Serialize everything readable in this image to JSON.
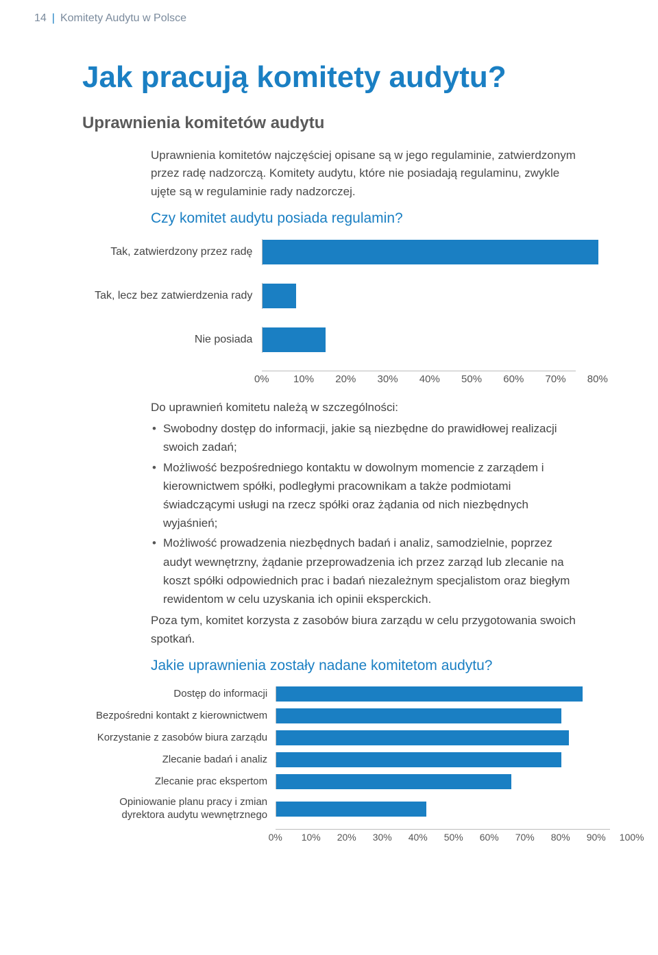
{
  "header": {
    "page_number": "14",
    "doc_title": "Komitety Audytu w Polsce"
  },
  "title": "Jak pracują komitety audytu?",
  "subtitle": "Uprawnienia komitetów audytu",
  "intro_para": "Uprawnienia komitetów najczęściej opisane są w jego regulaminie, zatwierdzonym przez radę nadzorczą. Komitety audytu, które nie posiadają regulaminu, zwykle ujęte są w regulaminie rady nadzorczej.",
  "question1": "Czy komitet audytu posiada regulamin?",
  "chart1": {
    "type": "bar-horizontal",
    "bar_color": "#1a7fc3",
    "axis_color": "#bbbbbb",
    "label_fontsize": 16,
    "tick_fontsize": 15,
    "xmin": 0,
    "xmax": 80,
    "xtick_step": 10,
    "categories": [
      {
        "label": "Tak, zatwierdzony przez radę",
        "value": 80
      },
      {
        "label": "Tak, lecz bez zatwierdzenia rady",
        "value": 8
      },
      {
        "label": "Nie posiada",
        "value": 15
      }
    ],
    "ticks": [
      "0%",
      "10%",
      "20%",
      "30%",
      "40%",
      "50%",
      "60%",
      "70%",
      "80%"
    ]
  },
  "bullets": {
    "intro": "Do uprawnień komitetu należą w szczególności:",
    "items": [
      "Swobodny dostęp do informacji, jakie są niezbędne do prawidłowej realizacji swoich zadań;",
      "Możliwość bezpośredniego kontaktu w dowolnym momencie z zarządem i kierownictwem spółki, podległymi pracownikam a także podmiotami świadczącymi usługi na rzecz spółki oraz żądania od nich niezbędnych wyjaśnień;",
      "Możliwość prowadzenia niezbędnych badań i analiz, samodzielnie, poprzez audyt wewnętrzny, żądanie przeprowadzenia ich przez zarząd lub zlecanie na koszt spółki odpowiednich prac i badań niezależnym specjalistom oraz biegłym rewidentom w celu uzyskania ich opinii eksperckich."
    ],
    "outro": "Poza tym, komitet korzysta z zasobów biura zarządu w celu przygotowania swoich spotkań."
  },
  "question2": "Jakie uprawnienia zostały nadane komitetom audytu?",
  "chart2": {
    "type": "bar-horizontal",
    "bar_color": "#1a7fc3",
    "axis_color": "#bbbbbb",
    "label_fontsize": 15,
    "tick_fontsize": 14,
    "xmin": 0,
    "xmax": 100,
    "xtick_step": 10,
    "categories": [
      {
        "label": "Dostęp do informacji",
        "value": 86
      },
      {
        "label": "Bezpośredni kontakt z kierownictwem",
        "value": 80
      },
      {
        "label": "Korzystanie z zasobów biura zarządu",
        "value": 82
      },
      {
        "label": "Zlecanie badań i analiz",
        "value": 80
      },
      {
        "label": "Zlecanie prac ekspertom",
        "value": 66
      },
      {
        "label": "Opiniowanie planu pracy i zmian dyrektora audytu wewnętrznego",
        "value": 42
      }
    ],
    "ticks": [
      "0%",
      "10%",
      "20%",
      "30%",
      "40%",
      "50%",
      "60%",
      "70%",
      "80%",
      "90%",
      "100%"
    ]
  }
}
